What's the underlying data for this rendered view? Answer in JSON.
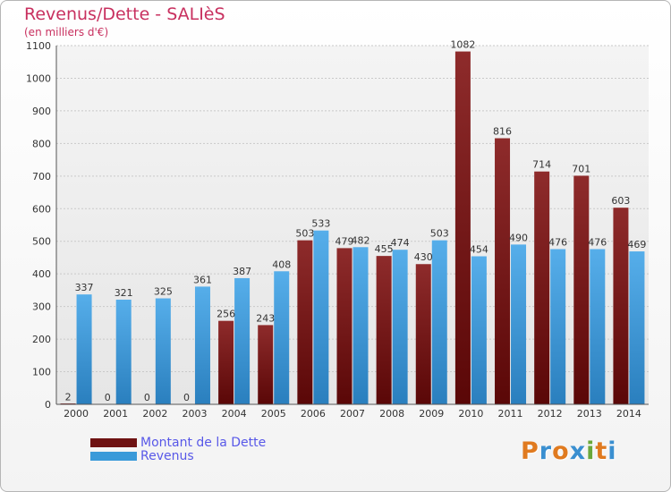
{
  "chart_data": {
    "type": "bar",
    "title": "Revenus/Dette - SALIèS",
    "subtitle": "(en milliers d'€)",
    "categories": [
      "2000",
      "2001",
      "2002",
      "2003",
      "2004",
      "2005",
      "2006",
      "2007",
      "2008",
      "2009",
      "2010",
      "2011",
      "2012",
      "2013",
      "2014"
    ],
    "series": [
      {
        "name": "Montant de la Dette",
        "color": "#7a1a1a",
        "values": [
          2,
          0,
          0,
          0,
          256,
          243,
          503,
          479,
          455,
          430,
          1082,
          816,
          714,
          701,
          603
        ]
      },
      {
        "name": "Revenus",
        "color": "#3a9ad9",
        "values": [
          337,
          321,
          325,
          361,
          387,
          408,
          533,
          482,
          474,
          503,
          454,
          490,
          476,
          476,
          469
        ]
      }
    ],
    "ylim": [
      0,
      1100
    ],
    "yticks": [
      0,
      100,
      200,
      300,
      400,
      500,
      600,
      700,
      800,
      900,
      1000,
      1100
    ],
    "grid": true,
    "legend_position": "bottom-left"
  },
  "logo": {
    "text": "Proxiti",
    "letters": [
      "P",
      "r",
      "o",
      "x",
      "i",
      "t",
      "i"
    ],
    "colors": [
      "#e07a1f",
      "#3a8fd0",
      "#e07a1f",
      "#3a8fd0",
      "#6aa83a",
      "#e07a1f",
      "#3a8fd0"
    ]
  }
}
